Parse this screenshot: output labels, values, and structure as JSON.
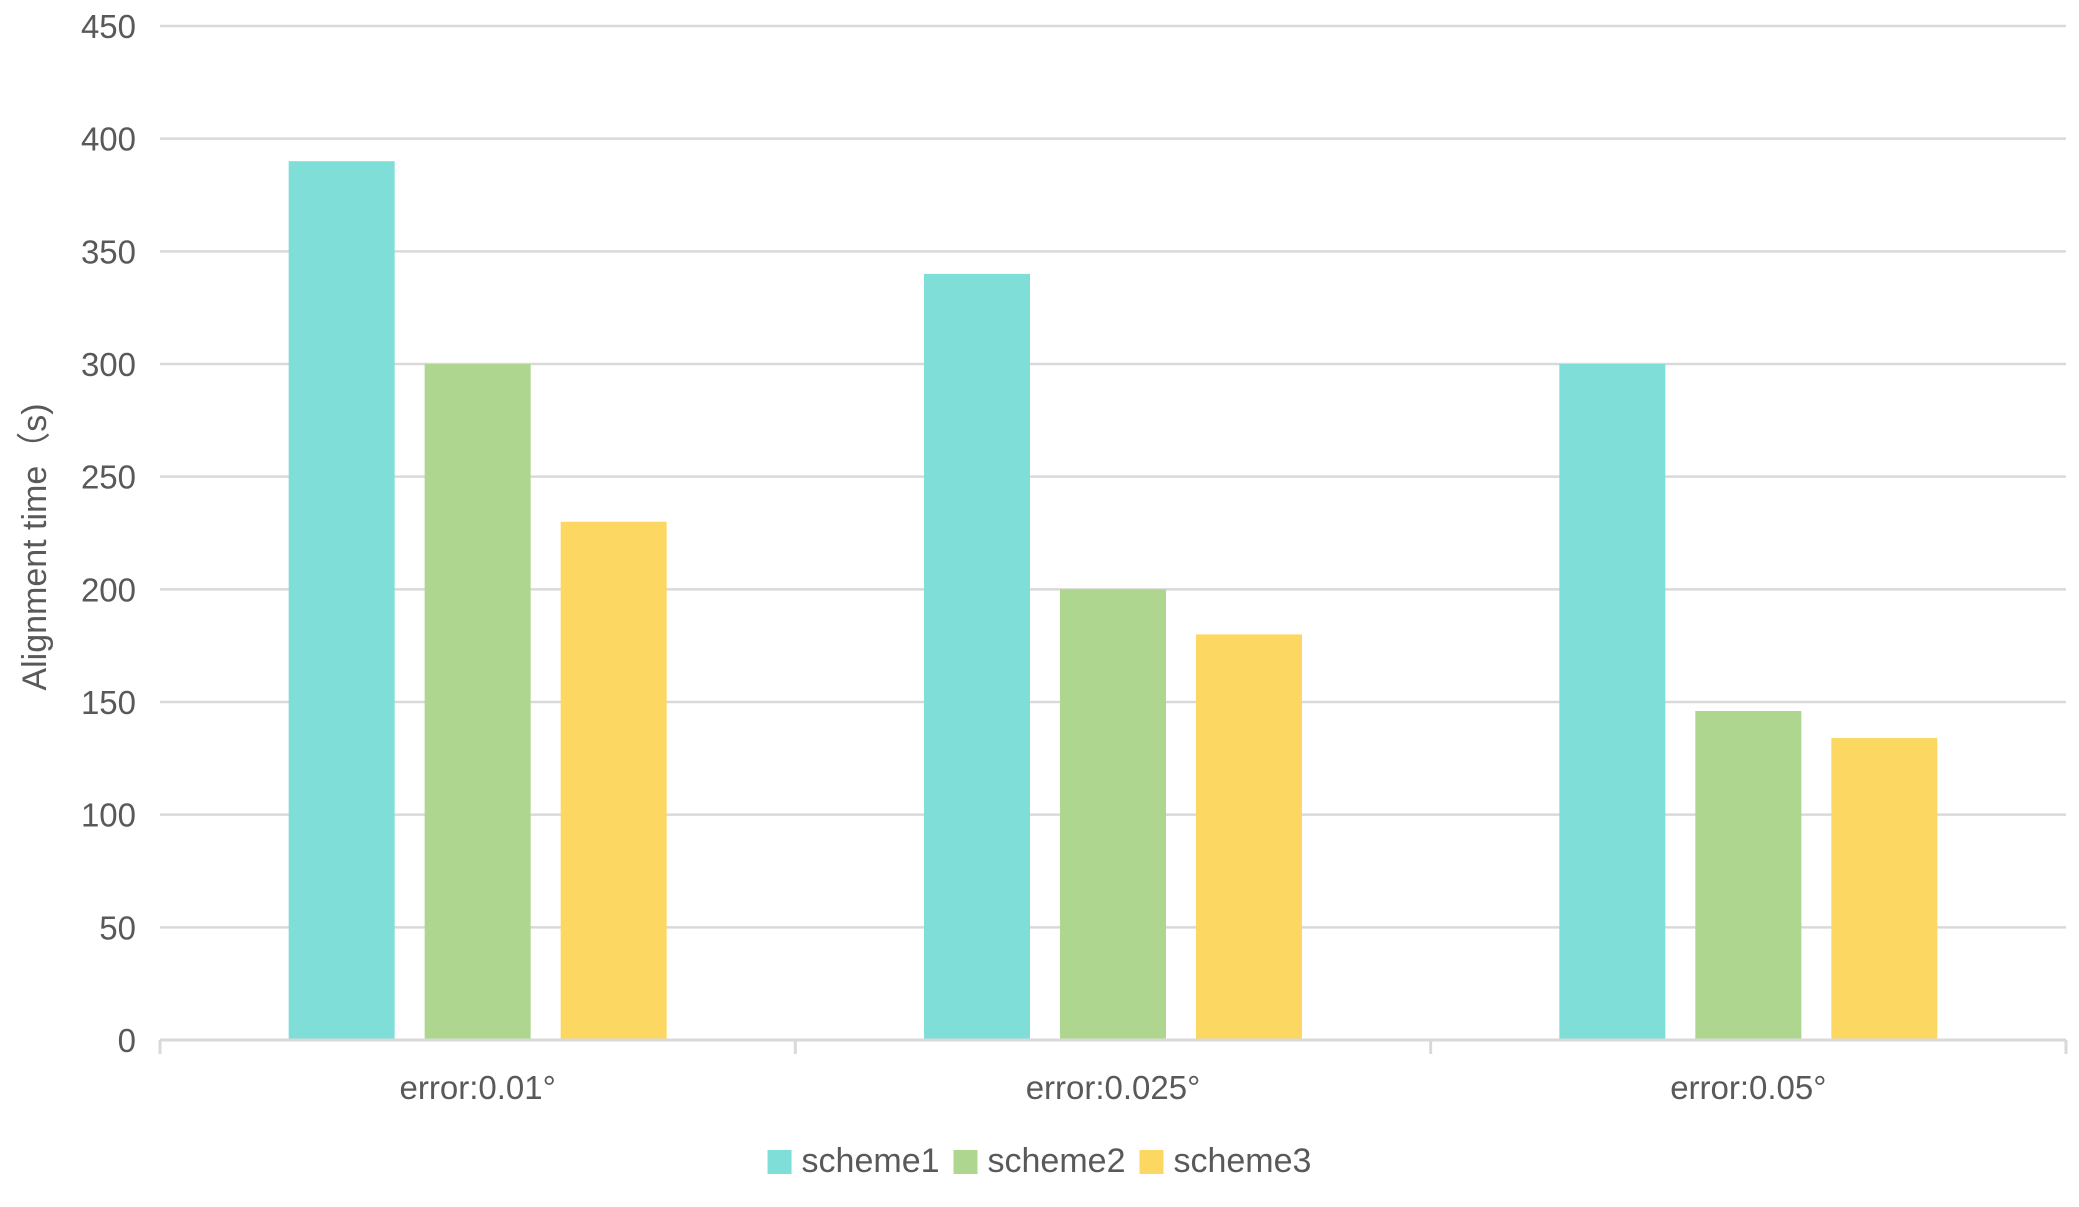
{
  "chart_data": {
    "type": "bar",
    "title": "",
    "xlabel": "",
    "ylabel": "Alignment time（s)",
    "ylim": [
      0,
      450
    ],
    "ytick_step": 50,
    "yticks": [
      "0",
      "50",
      "100",
      "150",
      "200",
      "250",
      "300",
      "350",
      "400",
      "450"
    ],
    "grid": true,
    "legend_position": "bottom-center",
    "categories": [
      "error:0.01°",
      "error:0.025°",
      "error:0.05°"
    ],
    "series": [
      {
        "name": "scheme1",
        "color": "#7FDED8",
        "values": [
          390,
          340,
          300
        ]
      },
      {
        "name": "scheme2",
        "color": "#AED68E",
        "values": [
          300,
          200,
          146
        ]
      },
      {
        "name": "scheme3",
        "color": "#FCD862",
        "values": [
          230,
          180,
          134
        ]
      }
    ]
  }
}
